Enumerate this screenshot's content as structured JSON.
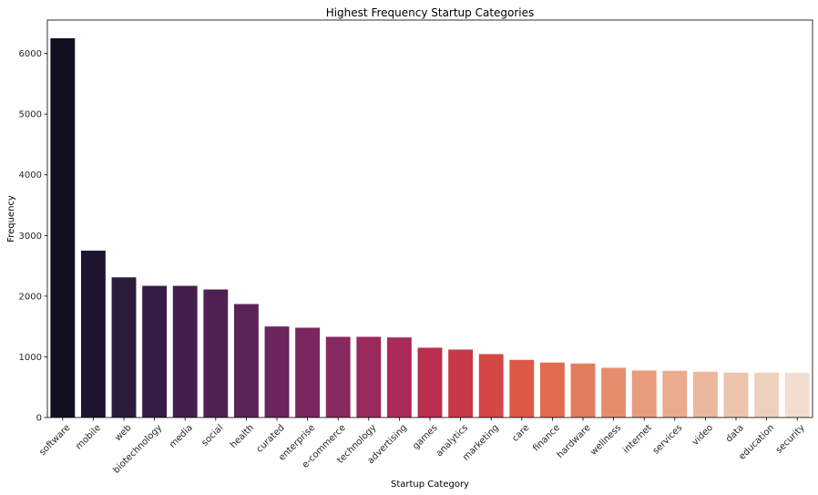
{
  "chart_data": {
    "type": "bar",
    "title": "Highest Frequency Startup Categories",
    "xlabel": "Startup Category",
    "ylabel": "Frequency",
    "ylim": [
      0,
      6550
    ],
    "yticks": [
      0,
      1000,
      2000,
      3000,
      4000,
      5000,
      6000
    ],
    "grid": false,
    "legend": "none",
    "categories": [
      "software",
      "mobile",
      "web",
      "biotechnology",
      "media",
      "social",
      "health",
      "curated",
      "enterprise",
      "e-commerce",
      "technology",
      "advertising",
      "games",
      "analytics",
      "marketing",
      "care",
      "finance",
      "hardware",
      "wellness",
      "internet",
      "services",
      "video",
      "data",
      "education",
      "security"
    ],
    "values": [
      6250,
      2750,
      2310,
      2170,
      2170,
      2110,
      1870,
      1500,
      1480,
      1330,
      1330,
      1320,
      1150,
      1120,
      1045,
      950,
      905,
      890,
      820,
      775,
      770,
      755,
      740,
      740,
      735
    ],
    "colors": [
      "#120f21",
      "#1d1530",
      "#2b1b3d",
      "#361d46",
      "#421f4b",
      "#4f2152",
      "#5a2257",
      "#6b245c",
      "#7a265e",
      "#89285e",
      "#9a295c",
      "#ab2a57",
      "#bb2e50",
      "#c73848",
      "#d34843",
      "#dc5a45",
      "#e06b50",
      "#e27c5f",
      "#e58e6e",
      "#e79d7d",
      "#eaab8d",
      "#ebb79d",
      "#edc4ad",
      "#eed0be",
      "#f2ddd0"
    ]
  }
}
